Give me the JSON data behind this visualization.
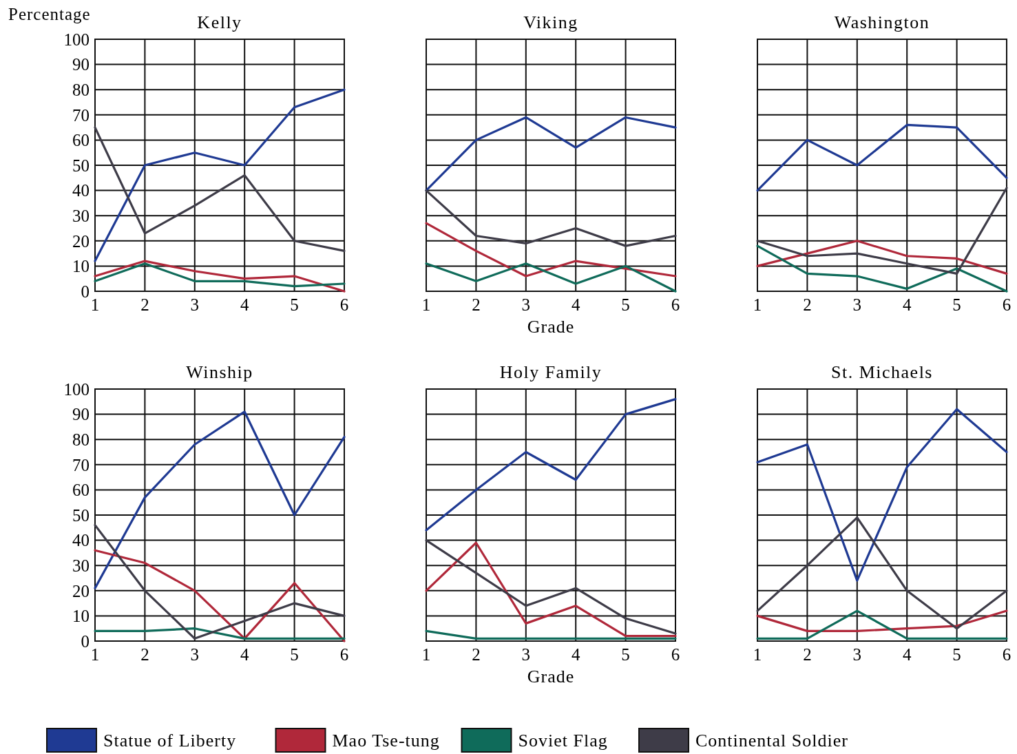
{
  "chart_data": [
    {
      "type": "line",
      "title": "Kelly",
      "ylabel": "Percentage",
      "x": [
        1,
        2,
        3,
        4,
        5,
        6
      ],
      "xlim": [
        1,
        6
      ],
      "xticks": [
        1,
        2,
        3,
        4,
        5,
        6
      ],
      "ylim": [
        0,
        100
      ],
      "yticks": [
        0,
        10,
        20,
        30,
        40,
        50,
        60,
        70,
        80,
        90,
        100
      ],
      "grid": true,
      "legend": "bottom",
      "series": [
        {
          "name": "Statue of Liberty",
          "color": "#1f3a93",
          "values": [
            12,
            50,
            55,
            50,
            73,
            80
          ]
        },
        {
          "name": "Mao Tse-tung",
          "color": "#b0283a",
          "values": [
            6,
            12,
            8,
            5,
            6,
            0
          ]
        },
        {
          "name": "Soviet Flag",
          "color": "#0f6b5a",
          "values": [
            4,
            11,
            4,
            4,
            2,
            3
          ]
        },
        {
          "name": "Continental Soldier",
          "color": "#3e3c48",
          "values": [
            65,
            23,
            34,
            46,
            20,
            16
          ]
        }
      ]
    },
    {
      "type": "line",
      "title": "Viking",
      "xlabel": "Grade",
      "x": [
        1,
        2,
        3,
        4,
        5,
        6
      ],
      "xlim": [
        1,
        6
      ],
      "xticks": [
        1,
        2,
        3,
        4,
        5,
        6
      ],
      "ylim": [
        0,
        100
      ],
      "yticks": [
        0,
        10,
        20,
        30,
        40,
        50,
        60,
        70,
        80,
        90,
        100
      ],
      "grid": true,
      "tick_labels": "x",
      "series": [
        {
          "color": "#1f3a93",
          "values": [
            40,
            60,
            69,
            57,
            69,
            65
          ]
        },
        {
          "color": "#b0283a",
          "values": [
            27,
            16,
            6,
            12,
            9,
            6
          ]
        },
        {
          "color": "#0f6b5a",
          "values": [
            11,
            4,
            11,
            3,
            10,
            0
          ]
        },
        {
          "color": "#3e3c48",
          "values": [
            40,
            22,
            19,
            25,
            18,
            22
          ]
        }
      ]
    },
    {
      "type": "line",
      "title": "Washington",
      "x": [
        1,
        2,
        3,
        4,
        5,
        6
      ],
      "xlim": [
        1,
        6
      ],
      "xticks": [
        1,
        2,
        3,
        4,
        5,
        6
      ],
      "ylim": [
        0,
        100
      ],
      "yticks": [
        0,
        10,
        20,
        30,
        40,
        50,
        60,
        70,
        80,
        90,
        100
      ],
      "grid": true,
      "tick_labels": "x",
      "series": [
        {
          "color": "#1f3a93",
          "values": [
            40,
            60,
            50,
            66,
            65,
            45
          ]
        },
        {
          "color": "#b0283a",
          "values": [
            10,
            15,
            20,
            14,
            13,
            7
          ]
        },
        {
          "color": "#0f6b5a",
          "values": [
            18,
            7,
            6,
            1,
            9,
            0
          ]
        },
        {
          "color": "#3e3c48",
          "values": [
            20,
            14,
            15,
            11,
            7,
            41
          ]
        }
      ]
    },
    {
      "type": "line",
      "title": "Winship",
      "x": [
        1,
        2,
        3,
        4,
        5,
        6
      ],
      "xlim": [
        1,
        6
      ],
      "xticks": [
        1,
        2,
        3,
        4,
        5,
        6
      ],
      "ylim": [
        0,
        100
      ],
      "yticks": [
        0,
        10,
        20,
        30,
        40,
        50,
        60,
        70,
        80,
        90,
        100
      ],
      "grid": true,
      "series": [
        {
          "color": "#1f3a93",
          "values": [
            21,
            57,
            78,
            91,
            50,
            81
          ]
        },
        {
          "color": "#b0283a",
          "values": [
            36,
            31,
            20,
            1,
            23,
            0
          ]
        },
        {
          "color": "#0f6b5a",
          "values": [
            4,
            4,
            5,
            1,
            1,
            1
          ]
        },
        {
          "color": "#3e3c48",
          "values": [
            46,
            20,
            1,
            8,
            15,
            10
          ]
        }
      ]
    },
    {
      "type": "line",
      "title": "Holy Family",
      "xlabel": "Grade",
      "x": [
        1,
        2,
        3,
        4,
        5,
        6
      ],
      "xlim": [
        1,
        6
      ],
      "xticks": [
        1,
        2,
        3,
        4,
        5,
        6
      ],
      "ylim": [
        0,
        100
      ],
      "yticks": [
        0,
        10,
        20,
        30,
        40,
        50,
        60,
        70,
        80,
        90,
        100
      ],
      "grid": true,
      "tick_labels": "x",
      "series": [
        {
          "color": "#1f3a93",
          "values": [
            44,
            60,
            75,
            64,
            90,
            96
          ]
        },
        {
          "color": "#b0283a",
          "values": [
            20,
            39,
            7,
            14,
            2,
            2
          ]
        },
        {
          "color": "#0f6b5a",
          "values": [
            4,
            1,
            1,
            1,
            1,
            1
          ]
        },
        {
          "color": "#3e3c48",
          "values": [
            40,
            27,
            14,
            21,
            9,
            3
          ]
        }
      ]
    },
    {
      "type": "line",
      "title": "St. Michaels",
      "x": [
        1,
        2,
        3,
        4,
        5,
        6
      ],
      "xlim": [
        1,
        6
      ],
      "xticks": [
        1,
        2,
        3,
        4,
        5,
        6
      ],
      "ylim": [
        0,
        100
      ],
      "yticks": [
        0,
        10,
        20,
        30,
        40,
        50,
        60,
        70,
        80,
        90,
        100
      ],
      "grid": true,
      "tick_labels": "x",
      "series": [
        {
          "color": "#1f3a93",
          "values": [
            71,
            78,
            24,
            69,
            92,
            75
          ]
        },
        {
          "color": "#b0283a",
          "values": [
            10,
            4,
            4,
            5,
            6,
            12
          ]
        },
        {
          "color": "#0f6b5a",
          "values": [
            1,
            1,
            12,
            1,
            1,
            1
          ]
        },
        {
          "color": "#3e3c48",
          "values": [
            12,
            30,
            49,
            20,
            5,
            20
          ]
        }
      ]
    }
  ]
}
